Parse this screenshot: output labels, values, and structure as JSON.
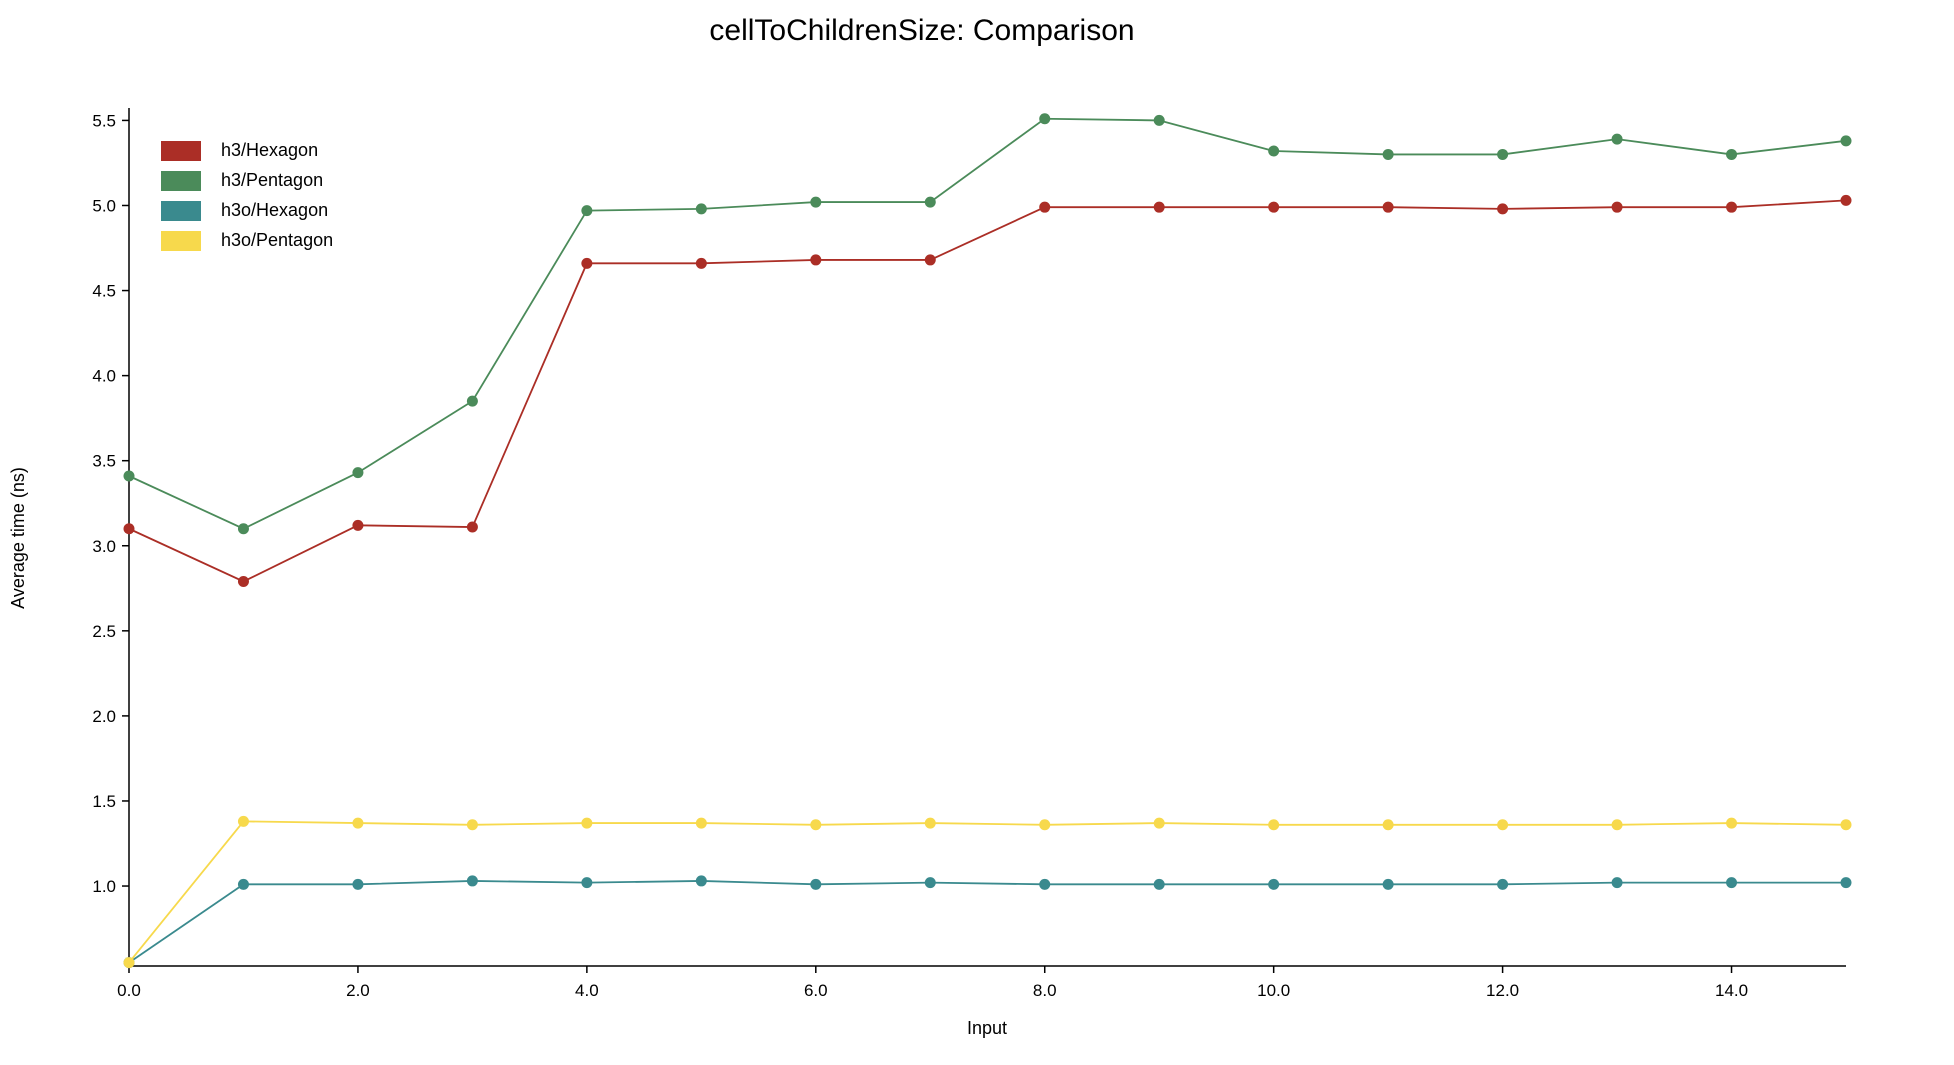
{
  "chart_data": {
    "type": "line",
    "title": "cellToChildrenSize: Comparison",
    "xlabel": "Input",
    "ylabel": "Average time (ns)",
    "xlim": [
      0,
      15
    ],
    "ylim": [
      0.53,
      5.62
    ],
    "x_ticks": [
      {
        "value": 0,
        "label": "0.0"
      },
      {
        "value": 2,
        "label": "2.0"
      },
      {
        "value": 4,
        "label": "4.0"
      },
      {
        "value": 6,
        "label": "6.0"
      },
      {
        "value": 8,
        "label": "8.0"
      },
      {
        "value": 10,
        "label": "10.0"
      },
      {
        "value": 12,
        "label": "12.0"
      },
      {
        "value": 14,
        "label": "14.0"
      }
    ],
    "y_ticks": [
      {
        "value": 1.0,
        "label": "1.0"
      },
      {
        "value": 1.5,
        "label": "1.5"
      },
      {
        "value": 2.0,
        "label": "2.0"
      },
      {
        "value": 2.5,
        "label": "2.5"
      },
      {
        "value": 3.0,
        "label": "3.0"
      },
      {
        "value": 3.5,
        "label": "3.5"
      },
      {
        "value": 4.0,
        "label": "4.0"
      },
      {
        "value": 4.5,
        "label": "4.5"
      },
      {
        "value": 5.0,
        "label": "5.0"
      },
      {
        "value": 5.5,
        "label": "5.5"
      }
    ],
    "grid": false,
    "legend_position": "top-left",
    "x": [
      0,
      1,
      2,
      3,
      4,
      5,
      6,
      7,
      8,
      9,
      10,
      11,
      12,
      13,
      14,
      15
    ],
    "series": [
      {
        "name": "h3/Hexagon",
        "color": "#ab2e26",
        "values": [
          3.1,
          2.79,
          3.12,
          3.11,
          4.66,
          4.66,
          4.68,
          4.68,
          4.99,
          4.99,
          4.99,
          4.99,
          4.98,
          4.99,
          4.99,
          5.03
        ]
      },
      {
        "name": "h3/Pentagon",
        "color": "#4b8b5a",
        "values": [
          3.41,
          3.1,
          3.43,
          3.85,
          4.97,
          4.98,
          5.02,
          5.02,
          5.51,
          5.5,
          5.32,
          5.3,
          5.3,
          5.39,
          5.3,
          5.38
        ]
      },
      {
        "name": "h3o/Hexagon",
        "color": "#3a8a8e",
        "values": [
          0.55,
          1.01,
          1.01,
          1.03,
          1.02,
          1.03,
          1.01,
          1.02,
          1.01,
          1.01,
          1.01,
          1.01,
          1.01,
          1.02,
          1.02,
          1.02
        ]
      },
      {
        "name": "h3o/Pentagon",
        "color": "#f7d94c",
        "values": [
          0.55,
          1.38,
          1.37,
          1.36,
          1.37,
          1.37,
          1.36,
          1.37,
          1.36,
          1.37,
          1.36,
          1.36,
          1.36,
          1.36,
          1.37,
          1.36
        ]
      }
    ]
  }
}
